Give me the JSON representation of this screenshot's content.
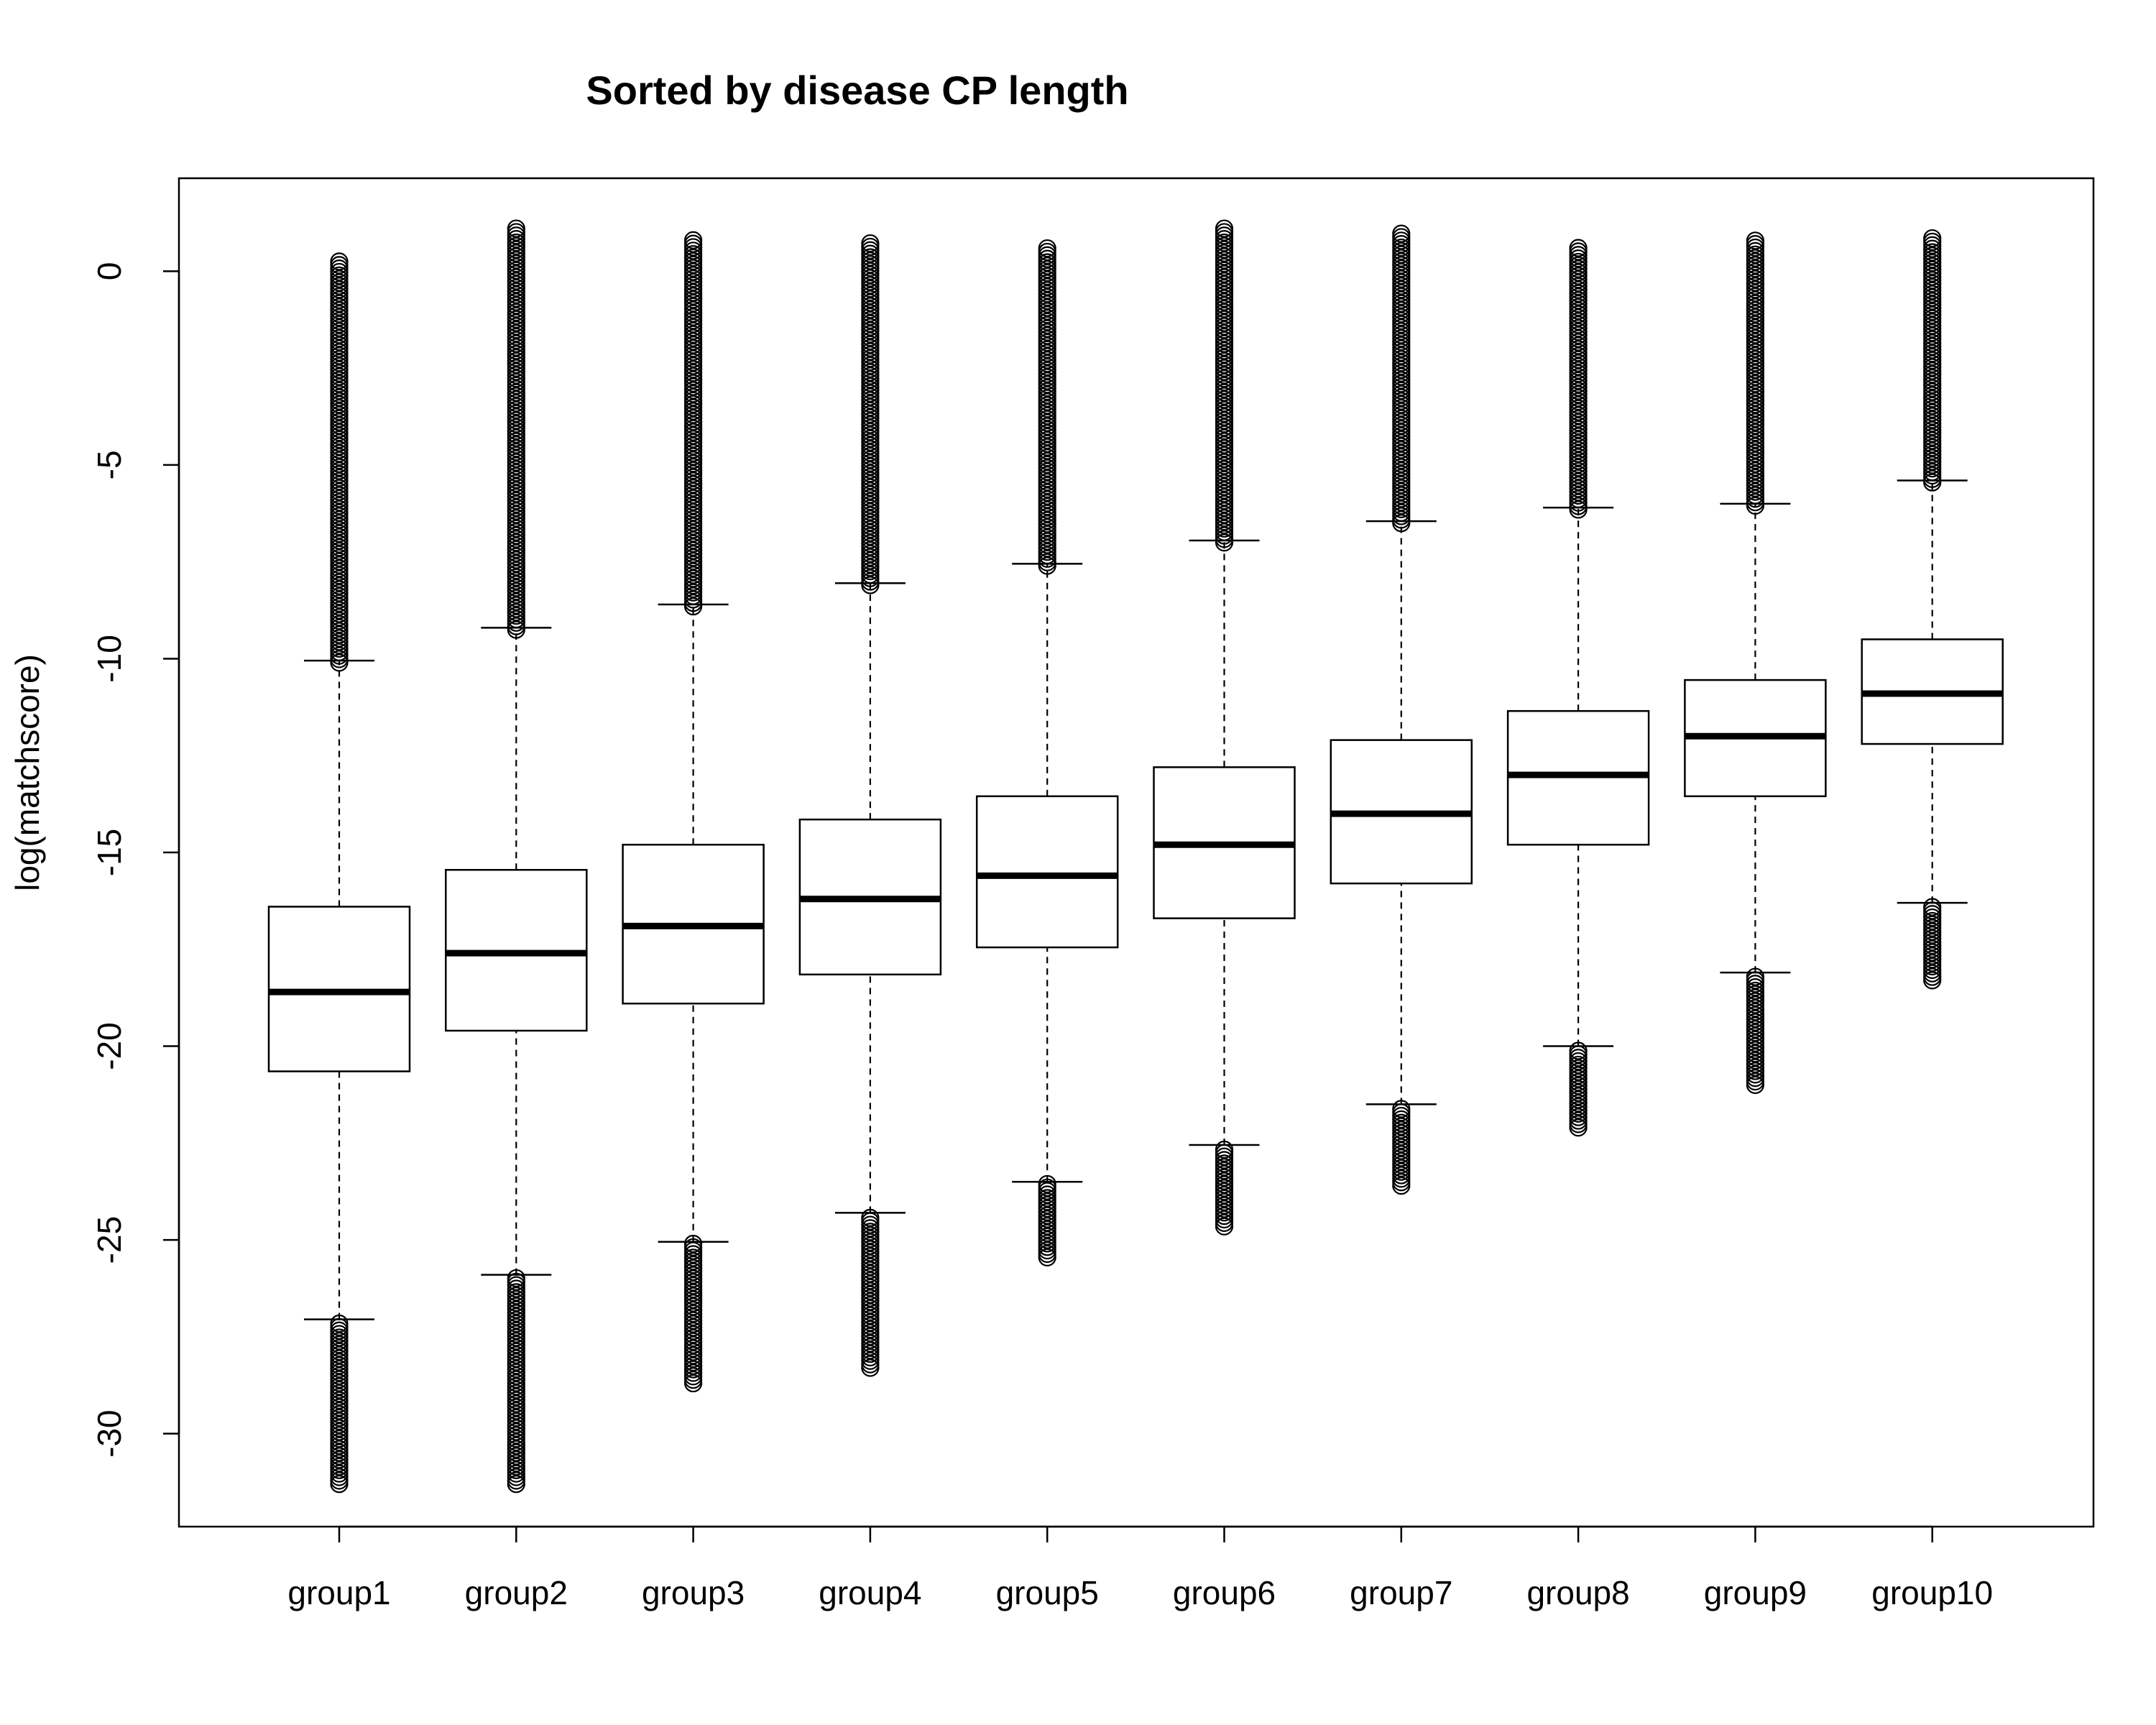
{
  "chart_data": {
    "type": "boxplot",
    "title": "Sorted by disease  CP length",
    "xlabel": "",
    "ylabel": "log(matchscore)",
    "ylim": [
      -32.4,
      2.4
    ],
    "yticks": [
      0,
      -5,
      -10,
      -15,
      -20,
      -25,
      -30
    ],
    "grid": false,
    "categories": [
      "group1",
      "group2",
      "group3",
      "group4",
      "group5",
      "group6",
      "group7",
      "group8",
      "group9",
      "group10"
    ],
    "boxes": [
      {
        "group": "group1",
        "whisker_low": -27.05,
        "q1": -20.65,
        "median": -18.6,
        "q3": -16.4,
        "whisker_high": -10.05,
        "outlier_low_max": -27.1,
        "outlier_low_min": -31.3,
        "outlier_high_min": -10.1,
        "outlier_high_max": 0.25
      },
      {
        "group": "group2",
        "whisker_low": -25.9,
        "q1": -19.6,
        "median": -17.6,
        "q3": -15.45,
        "whisker_high": -9.2,
        "outlier_low_max": -25.95,
        "outlier_low_min": -31.3,
        "outlier_high_min": -9.25,
        "outlier_high_max": 1.1
      },
      {
        "group": "group3",
        "whisker_low": -25.05,
        "q1": -18.9,
        "median": -16.9,
        "q3": -14.8,
        "whisker_high": -8.6,
        "outlier_low_max": -25.1,
        "outlier_low_min": -28.7,
        "outlier_high_min": -8.65,
        "outlier_high_max": 0.8
      },
      {
        "group": "group4",
        "whisker_low": -24.3,
        "q1": -18.15,
        "median": -16.2,
        "q3": -14.15,
        "whisker_high": -8.05,
        "outlier_low_max": -24.35,
        "outlier_low_min": -28.3,
        "outlier_high_min": -8.1,
        "outlier_high_max": 0.8
      },
      {
        "group": "group5",
        "whisker_low": -23.5,
        "q1": -17.45,
        "median": -15.6,
        "q3": -13.55,
        "whisker_high": -7.55,
        "outlier_low_max": -23.55,
        "outlier_low_min": -25.45,
        "outlier_high_min": -7.6,
        "outlier_high_max": 0.65
      },
      {
        "group": "group6",
        "whisker_low": -22.55,
        "q1": -16.7,
        "median": -14.8,
        "q3": -12.8,
        "whisker_high": -6.95,
        "outlier_low_max": -22.6,
        "outlier_low_min": -24.65,
        "outlier_high_min": -7.0,
        "outlier_high_max": 1.1
      },
      {
        "group": "group7",
        "whisker_low": -21.5,
        "q1": -15.8,
        "median": -14.0,
        "q3": -12.1,
        "whisker_high": -6.45,
        "outlier_low_max": -21.55,
        "outlier_low_min": -23.6,
        "outlier_high_min": -6.5,
        "outlier_high_max": 1.0
      },
      {
        "group": "group8",
        "whisker_low": -20.0,
        "q1": -14.8,
        "median": -13.0,
        "q3": -11.35,
        "whisker_high": -6.1,
        "outlier_low_max": -20.05,
        "outlier_low_min": -22.1,
        "outlier_high_min": -6.15,
        "outlier_high_max": 0.65
      },
      {
        "group": "group9",
        "whisker_low": -18.1,
        "q1": -13.55,
        "median": -12.0,
        "q3": -10.55,
        "whisker_high": -6.0,
        "outlier_low_max": -18.15,
        "outlier_low_min": -21.0,
        "outlier_high_min": -6.05,
        "outlier_high_max": 0.8
      },
      {
        "group": "group10",
        "whisker_low": -16.3,
        "q1": -12.2,
        "median": -10.9,
        "q3": -9.5,
        "whisker_high": -5.4,
        "outlier_low_max": -16.35,
        "outlier_low_min": -18.3,
        "outlier_high_min": -5.45,
        "outlier_high_max": 0.9
      }
    ]
  }
}
